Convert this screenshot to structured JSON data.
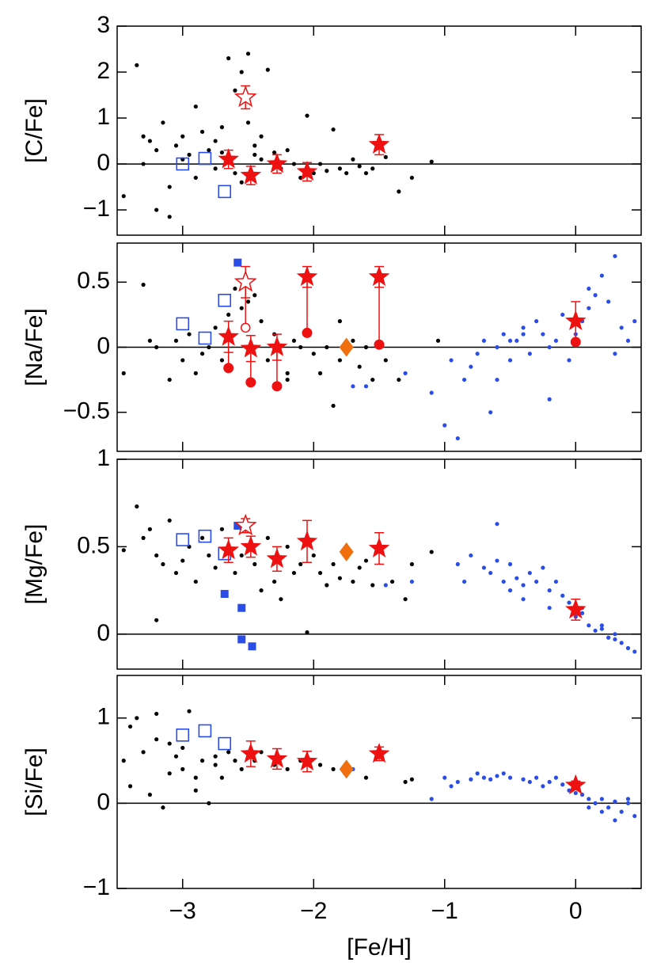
{
  "chart_data": [
    {
      "type": "scatter",
      "ylabel": "[C/Fe]",
      "xlim": [
        -3.5,
        0.5
      ],
      "ylim": [
        -1.55,
        3
      ],
      "hline": 0,
      "xticks": [
        -3,
        -2,
        -1,
        0
      ],
      "yticks": [
        {
          "value": -1,
          "label": "−1"
        },
        0,
        1,
        2,
        3
      ],
      "series": [
        {
          "marker": "dot",
          "color": "#000000",
          "x": [
            -3.45,
            -3.35,
            -3.3,
            -3.25,
            -3.2,
            -3.15,
            -3.1,
            -3.05,
            -3.0,
            -2.95,
            -2.9,
            -2.85,
            -2.8,
            -2.75,
            -2.7,
            -2.65,
            -2.6,
            -2.55,
            -2.5,
            -2.45,
            -2.4,
            -2.35,
            -2.3,
            -2.25,
            -2.2,
            -2.15,
            -2.1,
            -2.05,
            -2.0,
            -1.95,
            -1.9,
            -1.85,
            -1.8,
            -1.75,
            -1.7,
            -1.65,
            -1.6,
            -1.55,
            -1.45,
            -1.35,
            -1.25,
            -1.1,
            -3.2,
            -3.1,
            -3.0,
            -2.9,
            -2.75,
            -2.6,
            -2.5,
            -2.4,
            -3.3,
            -2.7,
            -2.55,
            -2.45
          ],
          "values": [
            -0.7,
            2.15,
            0.0,
            0.5,
            -1.0,
            0.9,
            -1.15,
            0.4,
            0.6,
            0.2,
            -0.3,
            0.7,
            0.3,
            -0.1,
            0.8,
            2.3,
            1.6,
            2.0,
            2.4,
            0.2,
            0.6,
            2.05,
            0.25,
            -0.1,
            0.3,
            0.0,
            -0.3,
            1.05,
            -0.2,
            0.0,
            -0.15,
            0.75,
            -0.1,
            -0.2,
            0.1,
            -0.05,
            -0.2,
            -0.1,
            0.15,
            -0.6,
            -0.3,
            0.05,
            0.3,
            -0.5,
            0.1,
            1.25,
            0.5,
            -0.2,
            0.9,
            0.1,
            0.6,
            0.25,
            -0.4,
            0.4
          ]
        },
        {
          "marker": "open-square",
          "color": "#2a4de8",
          "x": [
            -3.0,
            -2.83,
            -2.68
          ],
          "values": [
            0.0,
            0.12,
            -0.6
          ]
        },
        {
          "marker": "star",
          "color": "#ee1111",
          "x": [
            -2.65,
            -2.48,
            -2.28,
            -2.05,
            -1.5
          ],
          "values": [
            0.1,
            -0.25,
            0.0,
            -0.17,
            0.42
          ],
          "errors": [
            0.2,
            0.2,
            0.2,
            0.2,
            0.22
          ]
        },
        {
          "marker": "open-star",
          "color": "#ee1111",
          "x": [
            -2.52
          ],
          "values": [
            1.45
          ],
          "errors": [
            0.25
          ]
        }
      ]
    },
    {
      "type": "scatter",
      "ylabel": "[Na/Fe]",
      "xlim": [
        -3.5,
        0.5
      ],
      "ylim": [
        -0.8,
        0.8
      ],
      "hline": 0,
      "xticks": [
        -3,
        -2,
        -1,
        0
      ],
      "yticks": [
        {
          "value": -0.5,
          "label": "−0.5"
        },
        0,
        0.5
      ],
      "series": [
        {
          "marker": "dot",
          "color": "#000000",
          "x": [
            -3.45,
            -3.3,
            -3.2,
            -3.1,
            -3.05,
            -2.95,
            -2.9,
            -2.85,
            -2.8,
            -2.75,
            -2.7,
            -2.6,
            -2.55,
            -2.45,
            -2.4,
            -2.35,
            -2.3,
            -2.2,
            -2.15,
            -2.1,
            -2.0,
            -1.95,
            -1.9,
            -1.85,
            -1.8,
            -1.7,
            -1.65,
            -1.6,
            -1.55,
            -1.45,
            -1.35,
            -1.05,
            -3.25,
            -3.0,
            -2.65,
            -2.5,
            -2.2,
            -1.8
          ],
          "values": [
            -0.2,
            0.48,
            0.0,
            -0.25,
            0.05,
            0.1,
            -0.2,
            -0.05,
            0.0,
            0.15,
            -0.1,
            0.45,
            0.3,
            0.4,
            0.2,
            -0.1,
            0.1,
            -0.2,
            0.05,
            0.0,
            -0.05,
            -0.2,
            0.0,
            -0.45,
            -0.1,
            0.05,
            -0.15,
            0.0,
            -0.25,
            -0.1,
            -0.25,
            0.05,
            0.05,
            -0.1,
            0.25,
            0.35,
            -0.25,
            0.2
          ]
        },
        {
          "marker": "dot",
          "color": "#2a4de8",
          "x": [
            -1.7,
            -1.6,
            -1.3,
            -1.1,
            -1.0,
            -0.9,
            -0.85,
            -0.8,
            -0.75,
            -0.7,
            -0.65,
            -0.6,
            -0.55,
            -0.5,
            -0.45,
            -0.4,
            -0.35,
            -0.3,
            -0.25,
            -0.2,
            -0.15,
            -0.1,
            -0.05,
            0.0,
            0.05,
            0.1,
            0.15,
            0.2,
            0.25,
            0.3,
            0.35,
            0.4,
            0.45,
            -0.6,
            -0.4,
            -0.2,
            0.1,
            0.3,
            -0.95,
            -0.5
          ],
          "values": [
            -0.3,
            -0.3,
            -0.2,
            -0.35,
            -0.6,
            -0.7,
            -0.25,
            -0.15,
            -0.05,
            0.05,
            -0.5,
            0.0,
            0.1,
            -0.1,
            0.05,
            0.15,
            -0.05,
            0.2,
            0.1,
            0.0,
            0.05,
            0.25,
            -0.1,
            0.1,
            0.2,
            0.3,
            0.4,
            0.55,
            0.35,
            0.7,
            0.15,
            0.05,
            0.2,
            -0.25,
            0.1,
            -0.4,
            0.45,
            -0.05,
            -0.1,
            0.05
          ]
        },
        {
          "marker": "open-square",
          "color": "#2a4de8",
          "x": [
            -3.0,
            -2.83,
            -2.68
          ],
          "values": [
            0.18,
            0.07,
            0.36
          ]
        },
        {
          "marker": "filled-square",
          "color": "#2a4de8",
          "x": [
            -2.58
          ],
          "values": [
            0.65
          ]
        },
        {
          "marker": "circle",
          "color": "#ee1111",
          "x": [
            -2.65,
            -2.48,
            -2.28,
            -2.05,
            -1.5,
            0.0
          ],
          "values": [
            -0.16,
            -0.27,
            -0.3,
            0.11,
            0.02,
            0.04
          ]
        },
        {
          "marker": "open-circle",
          "color": "#ee1111",
          "x": [
            -2.52
          ],
          "values": [
            0.15
          ]
        },
        {
          "marker": "star",
          "color": "#ee1111",
          "x": [
            -2.65,
            -2.48,
            -2.28,
            -2.05,
            -1.5,
            0.0
          ],
          "values": [
            0.08,
            -0.01,
            0.0,
            0.54,
            0.54,
            0.2
          ],
          "errors": [
            0.12,
            0.1,
            0.1,
            0.08,
            0.08,
            0.15
          ]
        },
        {
          "marker": "open-star",
          "color": "#ee1111",
          "x": [
            -2.52
          ],
          "values": [
            0.5
          ],
          "errors": [
            0.12
          ]
        },
        {
          "marker": "diamond",
          "color": "#f07010",
          "x": [
            -1.75
          ],
          "values": [
            0.0
          ]
        }
      ]
    },
    {
      "type": "scatter",
      "ylabel": "[Mg/Fe]",
      "xlim": [
        -3.5,
        0.5
      ],
      "ylim": [
        -0.2,
        1
      ],
      "hline": 0,
      "xticks": [
        -3,
        -2,
        -1,
        0
      ],
      "yticks": [
        0,
        0.5,
        1
      ],
      "series": [
        {
          "marker": "dot",
          "color": "#000000",
          "x": [
            -3.45,
            -3.35,
            -3.3,
            -3.25,
            -3.2,
            -3.15,
            -3.1,
            -3.05,
            -3.0,
            -2.95,
            -2.9,
            -2.85,
            -2.8,
            -2.75,
            -2.7,
            -2.6,
            -2.55,
            -2.45,
            -2.4,
            -2.35,
            -2.3,
            -2.25,
            -2.2,
            -2.15,
            -2.1,
            -2.05,
            -2.0,
            -1.95,
            -1.9,
            -1.85,
            -1.8,
            -1.7,
            -1.65,
            -1.6,
            -1.55,
            -1.4,
            -1.3,
            -1.25,
            -1.1,
            -3.2
          ],
          "values": [
            0.48,
            0.73,
            0.55,
            0.6,
            0.45,
            0.4,
            0.65,
            0.35,
            0.42,
            0.5,
            0.3,
            0.55,
            0.45,
            0.38,
            0.6,
            0.35,
            0.45,
            0.4,
            0.25,
            0.55,
            0.3,
            0.2,
            0.5,
            0.35,
            0.4,
            0.01,
            0.45,
            0.35,
            0.28,
            0.4,
            0.32,
            0.3,
            0.38,
            0.42,
            0.28,
            0.3,
            0.2,
            0.4,
            0.47,
            0.08
          ]
        },
        {
          "marker": "dot",
          "color": "#2a4de8",
          "x": [
            -1.45,
            -1.25,
            -0.9,
            -0.8,
            -0.7,
            -0.65,
            -0.6,
            -0.55,
            -0.5,
            -0.45,
            -0.4,
            -0.35,
            -0.3,
            -0.25,
            -0.2,
            -0.15,
            -0.1,
            -0.05,
            0.0,
            0.05,
            0.1,
            0.15,
            0.2,
            0.25,
            0.3,
            0.35,
            0.4,
            0.45,
            -0.6,
            -0.4,
            -0.2,
            0.05,
            0.2,
            -0.85,
            -0.5,
            0.3
          ],
          "values": [
            0.28,
            0.3,
            0.4,
            0.45,
            0.38,
            0.35,
            0.63,
            0.3,
            0.4,
            0.32,
            0.28,
            0.35,
            0.3,
            0.38,
            0.25,
            0.3,
            0.22,
            0.18,
            0.1,
            0.15,
            0.05,
            0.02,
            0.05,
            -0.02,
            0.0,
            -0.05,
            -0.08,
            -0.1,
            0.42,
            0.2,
            0.15,
            0.12,
            0.03,
            0.3,
            0.25,
            -0.03
          ]
        },
        {
          "marker": "open-square",
          "color": "#2a4de8",
          "x": [
            -3.0,
            -2.83,
            -2.68
          ],
          "values": [
            0.54,
            0.56,
            0.46
          ]
        },
        {
          "marker": "filled-square",
          "color": "#2a4de8",
          "x": [
            -2.58,
            -2.55,
            -2.68,
            -2.55,
            -2.47
          ],
          "values": [
            0.62,
            0.15,
            0.23,
            -0.03,
            -0.07
          ]
        },
        {
          "marker": "star",
          "color": "#ee1111",
          "x": [
            -2.65,
            -2.48,
            -2.28,
            -2.05,
            -1.5,
            0.0
          ],
          "values": [
            0.48,
            0.5,
            0.43,
            0.53,
            0.49,
            0.14
          ],
          "errors": [
            0.07,
            0.06,
            0.07,
            0.12,
            0.09,
            0.06
          ]
        },
        {
          "marker": "open-star",
          "color": "#ee1111",
          "x": [
            -2.52
          ],
          "values": [
            0.62
          ],
          "errors": [
            0.04
          ]
        },
        {
          "marker": "diamond",
          "color": "#f07010",
          "x": [
            -1.75
          ],
          "values": [
            0.47
          ]
        }
      ]
    },
    {
      "type": "scatter",
      "ylabel": "[Si/Fe]",
      "xlabel": "[Fe/H]",
      "xlim": [
        -3.5,
        0.5
      ],
      "ylim": [
        -1,
        1.5
      ],
      "hline": 0,
      "xticks": [
        {
          "value": -3,
          "label": "−3"
        },
        {
          "value": -2,
          "label": "−2"
        },
        {
          "value": -1,
          "label": "−1"
        },
        0
      ],
      "yticks": [
        {
          "value": -1,
          "label": "−1"
        },
        0,
        1
      ],
      "series": [
        {
          "marker": "dot",
          "color": "#000000",
          "x": [
            -3.45,
            -3.4,
            -3.35,
            -3.3,
            -3.25,
            -3.2,
            -3.15,
            -3.1,
            -3.05,
            -3.0,
            -2.95,
            -2.9,
            -2.85,
            -2.8,
            -2.75,
            -2.7,
            -2.65,
            -2.6,
            -2.55,
            -2.45,
            -2.4,
            -2.3,
            -2.2,
            -2.1,
            -1.95,
            -1.85,
            -1.75,
            -1.6,
            -1.3,
            -1.25,
            -3.4,
            -3.1,
            -2.9,
            -2.75,
            -3.2,
            -3.0
          ],
          "values": [
            0.5,
            0.9,
            1.0,
            0.6,
            0.1,
            1.05,
            -0.05,
            0.7,
            0.55,
            0.4,
            1.08,
            0.3,
            0.5,
            0.0,
            0.45,
            0.3,
            0.6,
            0.5,
            0.4,
            0.5,
            0.6,
            0.45,
            0.4,
            0.5,
            0.45,
            0.4,
            0.35,
            0.3,
            0.25,
            0.28,
            0.2,
            0.35,
            0.15,
            0.55,
            0.75,
            0.65
          ]
        },
        {
          "marker": "dot",
          "color": "#2a4de8",
          "x": [
            -1.1,
            -1.0,
            -0.9,
            -0.8,
            -0.7,
            -0.6,
            -0.5,
            -0.4,
            -0.3,
            -0.2,
            -0.1,
            -0.05,
            0.0,
            0.05,
            0.1,
            0.15,
            0.2,
            0.25,
            0.3,
            0.35,
            0.4,
            0.45,
            -0.95,
            -0.75,
            -0.55,
            -0.35,
            -0.15,
            0.1,
            0.3,
            -1.7,
            -0.25,
            0.2,
            0.4,
            -0.65
          ],
          "values": [
            0.05,
            0.3,
            0.25,
            0.28,
            0.3,
            0.32,
            0.3,
            0.28,
            0.3,
            0.25,
            0.22,
            0.15,
            0.12,
            0.1,
            0.05,
            0.0,
            0.05,
            -0.05,
            0.02,
            -0.1,
            0.05,
            -0.15,
            0.2,
            0.35,
            0.35,
            0.25,
            0.3,
            -0.05,
            -0.2,
            0.4,
            0.2,
            -0.1,
            0.0,
            0.28
          ]
        },
        {
          "marker": "open-square",
          "color": "#2a4de8",
          "x": [
            -3.0,
            -2.83,
            -2.68
          ],
          "values": [
            0.8,
            0.85,
            0.7
          ]
        },
        {
          "marker": "star",
          "color": "#ee1111",
          "x": [
            -2.48,
            -2.28,
            -2.05,
            -1.5,
            0.0
          ],
          "values": [
            0.58,
            0.52,
            0.49,
            0.58,
            0.21
          ],
          "errors": [
            0.15,
            0.12,
            0.12,
            0.08,
            0.05
          ]
        },
        {
          "marker": "diamond",
          "color": "#f07010",
          "x": [
            -1.75
          ],
          "values": [
            0.4
          ]
        }
      ]
    }
  ]
}
